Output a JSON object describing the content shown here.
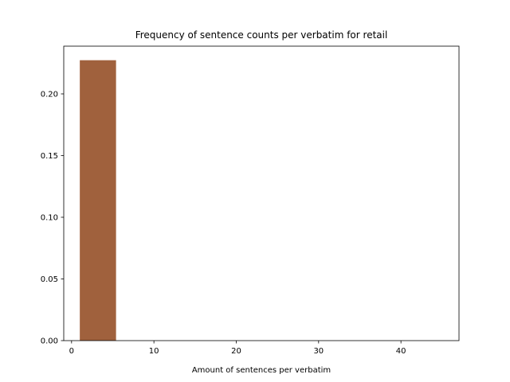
{
  "chart_data": {
    "type": "bar",
    "title": "Frequency of sentence counts per verbatim for retail",
    "xlabel": "Amount of sentences per verbatim",
    "ylabel": "",
    "xlim": [
      -0.95,
      47.05
    ],
    "ylim": [
      0,
      0.2387
    ],
    "xticks": [
      0,
      10,
      20,
      30,
      40
    ],
    "xtick_labels": [
      "0",
      "10",
      "20",
      "30",
      "40"
    ],
    "yticks": [
      0.0,
      0.05,
      0.1,
      0.15,
      0.2
    ],
    "ytick_labels": [
      "0.00",
      "0.05",
      "0.10",
      "0.15",
      "0.20"
    ],
    "grid": false,
    "bins": [
      {
        "x0": 1.0,
        "x1": 5.4,
        "value": 0.2273
      },
      {
        "x0": 5.4,
        "x1": 9.8,
        "value": 0.0
      },
      {
        "x0": 9.8,
        "x1": 14.2,
        "value": 0.0
      },
      {
        "x0": 14.2,
        "x1": 18.6,
        "value": 0.0
      },
      {
        "x0": 18.6,
        "x1": 23.0,
        "value": 0.0
      },
      {
        "x0": 23.0,
        "x1": 27.4,
        "value": 0.0
      },
      {
        "x0": 27.4,
        "x1": 31.8,
        "value": 0.0
      },
      {
        "x0": 31.8,
        "x1": 36.2,
        "value": 0.0
      },
      {
        "x0": 36.2,
        "x1": 40.6,
        "value": 0.0
      },
      {
        "x0": 40.6,
        "x1": 45.0,
        "value": 0.0
      }
    ],
    "bar_color": "#a0613d"
  }
}
